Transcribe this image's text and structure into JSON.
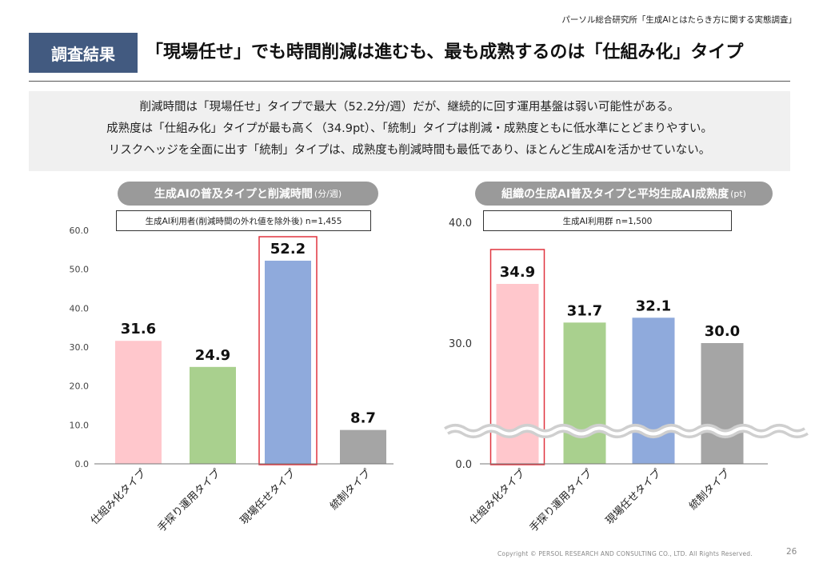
{
  "header": {
    "source": "パーソル総合研究所「生成AIとはたらき方に関する実態調査」",
    "badge": "調査結果",
    "title": "「現場任せ」でも時間削減は進むも、最も成熟するのは「仕組み化」タイプ"
  },
  "summary": {
    "lines": [
      "削減時間は「現場任せ」タイプで最大（52.2分/週）だが、継続的に回す運用基盤は弱い可能性がある。",
      "成熟度は「仕組み化」タイプが最も高く（34.9pt）、「統制」タイプは削減・成熟度ともに低水準にとどまりやすい。",
      "リスクヘッジを全面に出す「統制」タイプは、成熟度も削減時間も最低であり、ほとんど生成AIを活かせていない。"
    ]
  },
  "left_panel": {
    "title": "生成AIの普及タイプと削減時間",
    "unit": "(分/週)",
    "base": "生成AI利用者(削減時間の外れ値を除外後)  n=1,455"
  },
  "right_panel": {
    "title": "組織の生成AI普及タイプと平均生成AI成熟度",
    "unit": "(pt)",
    "base": "生成AI利用群  n=1,500"
  },
  "chart_data": [
    {
      "type": "bar",
      "categories": [
        "仕組み化タイプ",
        "手探り運用タイプ",
        "現場任せタイプ",
        "統制タイプ"
      ],
      "values": [
        31.6,
        24.9,
        52.2,
        8.7
      ],
      "value_labels": [
        "31.6",
        "24.9",
        "52.2",
        "8.7"
      ],
      "ylim": [
        0,
        60
      ],
      "yticks": [
        "0.0",
        "10.0",
        "20.0",
        "30.0",
        "40.0",
        "50.0",
        "60.0"
      ],
      "colors": [
        "#ffc7cc",
        "#a9d08e",
        "#8faadc",
        "#a5a5a5"
      ],
      "highlight_index": 2,
      "grid": false
    },
    {
      "type": "bar",
      "categories": [
        "仕組み化タイプ",
        "手探り運用タイプ",
        "現場任せタイプ",
        "統制タイプ"
      ],
      "values": [
        34.9,
        31.7,
        32.1,
        30.0
      ],
      "value_labels": [
        "34.9",
        "31.7",
        "32.1",
        "30.0"
      ],
      "ylim": [
        0,
        40
      ],
      "axis_break": true,
      "yticks": [
        "0.0",
        "30.0",
        "40.0"
      ],
      "colors": [
        "#ffc7cc",
        "#a9d08e",
        "#8faadc",
        "#a5a5a5"
      ],
      "highlight_index": 0,
      "grid": false
    }
  ],
  "footer": {
    "copyright": "Copyright © PERSOL RESEARCH AND CONSULTING CO., LTD. All Rights Reserved.",
    "page": "26"
  }
}
